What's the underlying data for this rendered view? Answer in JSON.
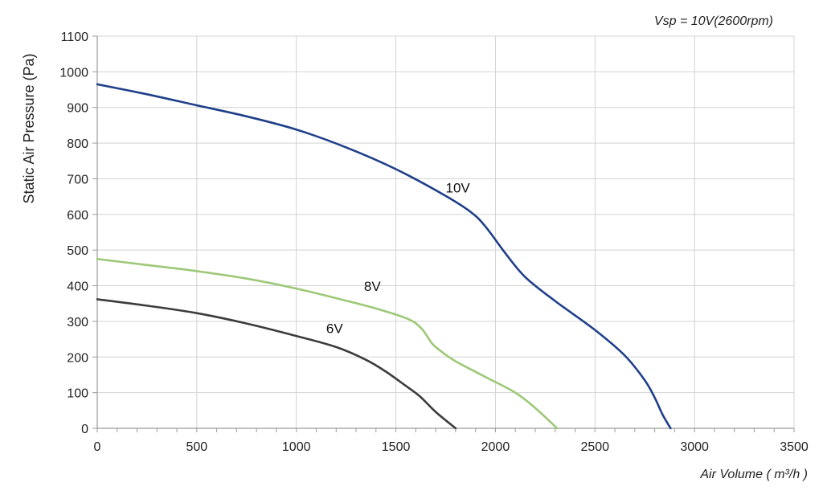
{
  "chart_data": {
    "type": "line",
    "subtitle": "Vsp = 10V(2600rpm)",
    "xlabel": "Air Volume ( m³/h )",
    "ylabel": "Static Air Pressure  (Pa)",
    "xlim": [
      0,
      3500
    ],
    "ylim": [
      0,
      1100
    ],
    "xticks": [
      0,
      500,
      1000,
      1500,
      2000,
      2500,
      3000,
      3500
    ],
    "yticks": [
      0,
      100,
      200,
      300,
      400,
      500,
      600,
      700,
      800,
      900,
      1000,
      1100
    ],
    "grid": true,
    "legend": "inline labels",
    "series": [
      {
        "name": "10V",
        "color": "#1f3f8a",
        "points": [
          [
            0,
            965
          ],
          [
            250,
            937
          ],
          [
            500,
            906
          ],
          [
            750,
            875
          ],
          [
            1000,
            838
          ],
          [
            1250,
            788
          ],
          [
            1500,
            727
          ],
          [
            1750,
            652
          ],
          [
            1880,
            605
          ],
          [
            1950,
            566
          ],
          [
            2050,
            491
          ],
          [
            2150,
            424
          ],
          [
            2300,
            357
          ],
          [
            2500,
            276
          ],
          [
            2650,
            204
          ],
          [
            2750,
            135
          ],
          [
            2800,
            86
          ],
          [
            2840,
            38
          ],
          [
            2880,
            0
          ]
        ]
      },
      {
        "name": "8V",
        "color": "#9dc878",
        "points": [
          [
            0,
            475
          ],
          [
            250,
            458
          ],
          [
            500,
            441
          ],
          [
            750,
            420
          ],
          [
            1000,
            392
          ],
          [
            1250,
            358
          ],
          [
            1400,
            336
          ],
          [
            1560,
            307
          ],
          [
            1630,
            279
          ],
          [
            1680,
            239
          ],
          [
            1720,
            219
          ],
          [
            1800,
            188
          ],
          [
            1950,
            144
          ],
          [
            2100,
            100
          ],
          [
            2200,
            57
          ],
          [
            2310,
            0
          ]
        ]
      },
      {
        "name": "6V",
        "color": "#3c3c3c",
        "points": [
          [
            0,
            362
          ],
          [
            250,
            344
          ],
          [
            500,
            323
          ],
          [
            750,
            294
          ],
          [
            1000,
            259
          ],
          [
            1200,
            228
          ],
          [
            1350,
            192
          ],
          [
            1450,
            159
          ],
          [
            1550,
            119
          ],
          [
            1620,
            90
          ],
          [
            1700,
            46
          ],
          [
            1800,
            0
          ]
        ]
      }
    ],
    "series_label_positions": [
      [
        1750,
        662
      ],
      [
        1340,
        386
      ],
      [
        1150,
        267
      ]
    ]
  }
}
